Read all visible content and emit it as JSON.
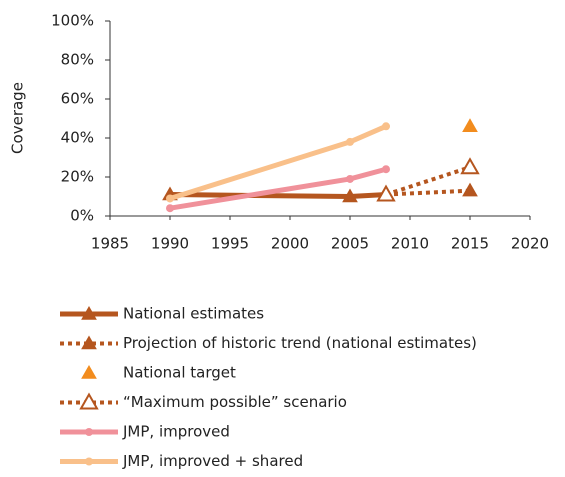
{
  "chart_data": {
    "type": "line",
    "y_label": "Coverage",
    "xlim": [
      1985,
      2020
    ],
    "xticks": [
      1985,
      1990,
      1995,
      2000,
      2005,
      2010,
      2015,
      2020
    ],
    "ylim": [
      0,
      100
    ],
    "yticks": [
      {
        "value": 0,
        "label": "0%"
      },
      {
        "value": 20,
        "label": "20%"
      },
      {
        "value": 40,
        "label": "40%"
      },
      {
        "value": 60,
        "label": "60%"
      },
      {
        "value": 80,
        "label": "80%"
      },
      {
        "value": 100,
        "label": "100%"
      }
    ],
    "series": [
      {
        "name": "National estimates",
        "color": "#b5561f",
        "x": [
          1990,
          2005,
          2008
        ],
        "values": [
          11,
          10,
          11
        ],
        "marker": "triangle",
        "dash": false,
        "line": true
      },
      {
        "name": "Projection of historic trend (national estimates)",
        "color": "#b5561f",
        "x": [
          2008,
          2015
        ],
        "values": [
          11,
          13
        ],
        "marker": "triangle",
        "dash": true,
        "line": true
      },
      {
        "name": "National target",
        "color": "#f28c1e",
        "x": [
          2015
        ],
        "values": [
          46
        ],
        "marker": "triangle",
        "dash": false,
        "line": false
      },
      {
        "name": "“Maximum possible” scenario",
        "color": "#b5561f",
        "x": [
          2008,
          2015
        ],
        "values": [
          11,
          25
        ],
        "marker": "triangle-open",
        "dash": true,
        "line": true
      },
      {
        "name": "JMP, improved",
        "color": "#f0919a",
        "x": [
          1990,
          2005,
          2008
        ],
        "values": [
          4,
          19,
          24
        ],
        "marker": "circle",
        "dash": false,
        "line": true
      },
      {
        "name": "JMP, improved + shared",
        "color": "#f9c08a",
        "x": [
          1990,
          2005,
          2008
        ],
        "values": [
          9,
          38,
          46
        ],
        "marker": "circle",
        "dash": false,
        "line": true
      }
    ]
  }
}
